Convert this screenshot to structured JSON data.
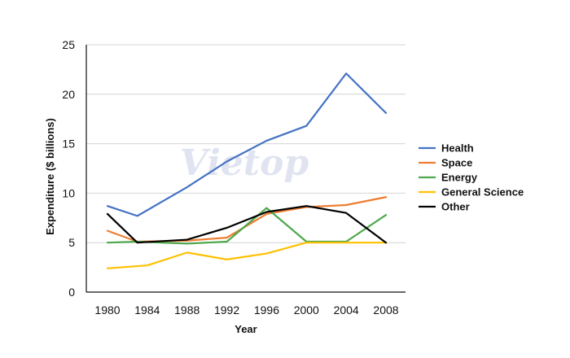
{
  "watermark": "Vietop",
  "chart_data": {
    "type": "line",
    "title": "",
    "xlabel": "Year",
    "ylabel": "Expenditure ($ billions)",
    "categories": [
      "1980",
      "1984",
      "1988",
      "1992",
      "1996",
      "2000",
      "2004",
      "2008"
    ],
    "ylim": [
      0,
      25
    ],
    "yticks": [
      "0",
      "5",
      "10",
      "15",
      "20",
      "25"
    ],
    "grid": "horizontal",
    "legend_position": "right",
    "series": [
      {
        "name": "Health",
        "color": "#4472C4",
        "x": [
          1980,
          1983,
          1988,
          1992,
          1996,
          2000,
          2004,
          2008
        ],
        "values": [
          8.7,
          7.7,
          10.6,
          13.2,
          15.3,
          16.8,
          22.1,
          18.1
        ]
      },
      {
        "name": "Space",
        "color": "#ED7D31",
        "x": [
          1980,
          1983,
          1988,
          1992,
          1996,
          2000,
          2004,
          2008
        ],
        "values": [
          6.2,
          5.1,
          5.2,
          5.5,
          7.9,
          8.6,
          8.8,
          9.6
        ]
      },
      {
        "name": "Energy",
        "color": "#4EA84C",
        "x": [
          1980,
          1983,
          1988,
          1992,
          1996,
          2000,
          2004,
          2008
        ],
        "values": [
          5.0,
          5.1,
          4.9,
          5.1,
          8.5,
          5.1,
          5.1,
          7.8
        ]
      },
      {
        "name": "General Science",
        "color": "#FFC000",
        "x": [
          1980,
          1984,
          1988,
          1992,
          1996,
          2000,
          2004,
          2008
        ],
        "values": [
          2.4,
          2.7,
          4.0,
          3.3,
          3.9,
          5.0,
          5.0,
          5.0
        ]
      },
      {
        "name": "Other",
        "color": "#000000",
        "x": [
          1980,
          1983,
          1988,
          1992,
          1996,
          2000,
          2004,
          2008
        ],
        "values": [
          7.9,
          5.0,
          5.3,
          6.5,
          8.1,
          8.7,
          8.0,
          5.0
        ]
      }
    ]
  }
}
